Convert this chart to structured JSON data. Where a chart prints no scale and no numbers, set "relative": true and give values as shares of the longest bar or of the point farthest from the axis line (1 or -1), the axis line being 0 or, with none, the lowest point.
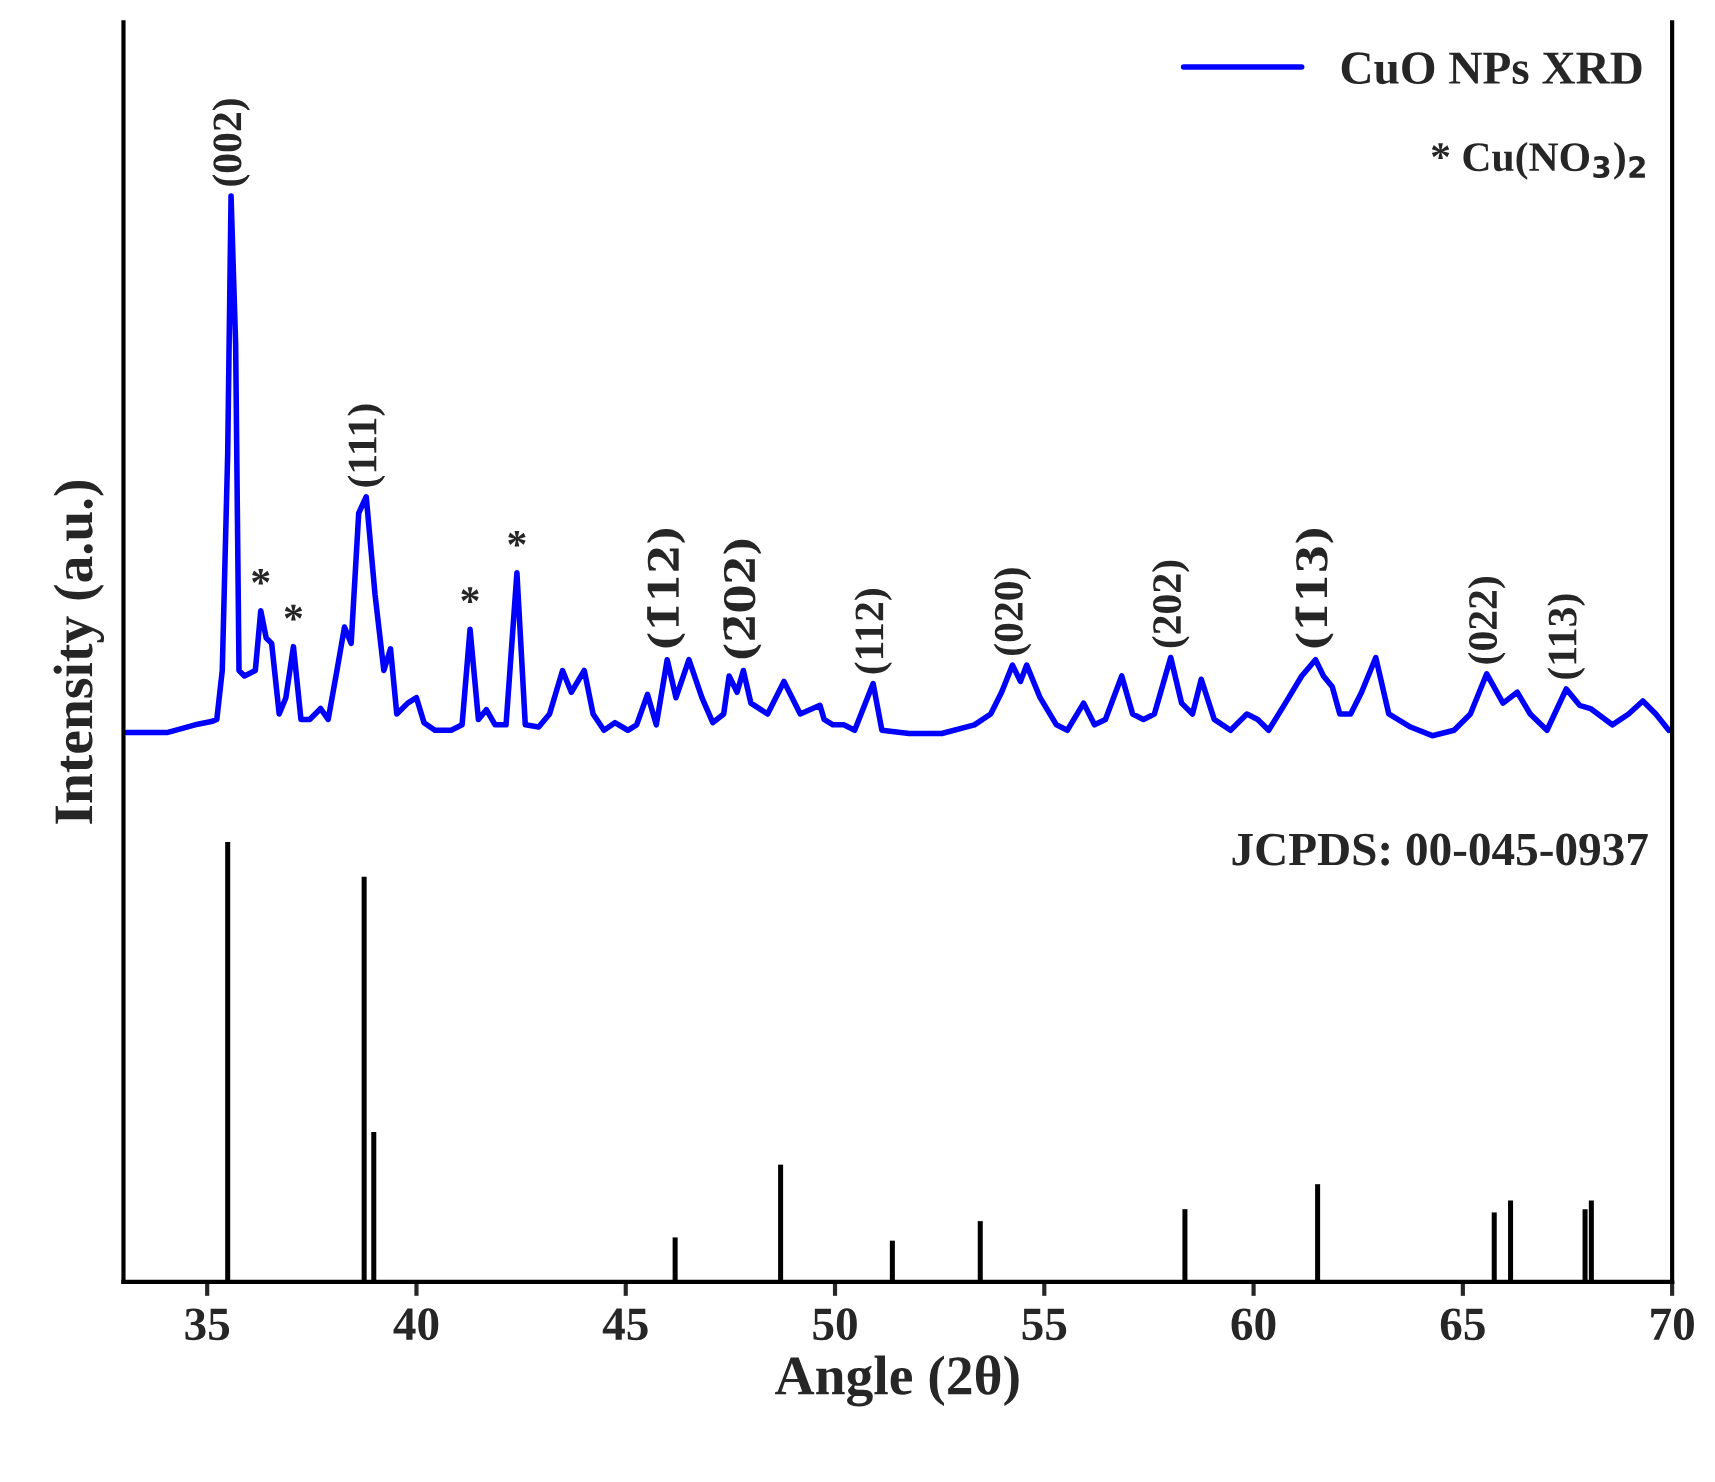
{
  "chart_data": {
    "type": "line",
    "relative": true,
    "xlabel": "Angle (2θ)",
    "ylabel": "Intensity (a.u.)",
    "xlim": [
      33,
      70
    ],
    "xticks": [
      35,
      40,
      45,
      50,
      55,
      60,
      65,
      70
    ],
    "legend": "top right",
    "grid": false,
    "series": [
      {
        "name": "CuO NPs XRD",
        "color": "#0000ff",
        "x": [
          33.07,
          34.06,
          34.71,
          35.1,
          35.23,
          35.36,
          35.49,
          35.57,
          35.68,
          35.76,
          35.89,
          36.15,
          36.28,
          36.41,
          36.54,
          36.72,
          36.88,
          37.06,
          37.24,
          37.45,
          37.71,
          37.89,
          38.1,
          38.28,
          38.44,
          38.62,
          38.8,
          39.01,
          39.22,
          39.38,
          39.53,
          39.79,
          40.0,
          40.18,
          40.44,
          40.83,
          41.09,
          41.28,
          41.48,
          41.67,
          41.88,
          42.14,
          42.4,
          42.6,
          42.92,
          43.18,
          43.49,
          43.7,
          44.01,
          44.22,
          44.48,
          44.74,
          45.05,
          45.26,
          45.52,
          45.73,
          45.99,
          46.2,
          46.51,
          46.82,
          47.08,
          47.34,
          47.47,
          47.66,
          47.81,
          47.99,
          48.39,
          48.78,
          49.17,
          49.64,
          49.74,
          49.95,
          50.21,
          50.47,
          50.91,
          51.12,
          51.77,
          52.55,
          53.33,
          53.72,
          53.98,
          54.24,
          54.43,
          54.58,
          54.9,
          55.29,
          55.55,
          55.94,
          56.2,
          56.46,
          56.85,
          57.11,
          57.37,
          57.63,
          58.02,
          58.28,
          58.54,
          58.75,
          59.06,
          59.45,
          59.84,
          60.1,
          60.36,
          60.76,
          61.15,
          61.48,
          61.67,
          61.88,
          62.06,
          62.32,
          62.58,
          62.92,
          63.23,
          63.75,
          64.27,
          64.79,
          65.18,
          65.57,
          65.96,
          66.3,
          66.61,
          67.01,
          67.47,
          67.79,
          68.05,
          68.57,
          68.96,
          69.3,
          69.61,
          69.92
        ],
        "values": [
          0.506,
          0.506,
          0.513,
          0.516,
          0.518,
          0.563,
          0.763,
          1.0,
          0.863,
          0.563,
          0.558,
          0.563,
          0.618,
          0.593,
          0.588,
          0.523,
          0.538,
          0.585,
          0.518,
          0.518,
          0.528,
          0.518,
          0.563,
          0.603,
          0.588,
          0.708,
          0.723,
          0.633,
          0.563,
          0.583,
          0.523,
          0.533,
          0.538,
          0.515,
          0.508,
          0.508,
          0.513,
          0.601,
          0.518,
          0.527,
          0.513,
          0.513,
          0.653,
          0.513,
          0.511,
          0.523,
          0.563,
          0.543,
          0.563,
          0.523,
          0.508,
          0.515,
          0.508,
          0.513,
          0.541,
          0.513,
          0.573,
          0.538,
          0.573,
          0.538,
          0.515,
          0.523,
          0.558,
          0.543,
          0.563,
          0.533,
          0.523,
          0.553,
          0.523,
          0.531,
          0.518,
          0.513,
          0.513,
          0.508,
          0.551,
          0.508,
          0.505,
          0.505,
          0.513,
          0.523,
          0.543,
          0.568,
          0.553,
          0.568,
          0.538,
          0.513,
          0.508,
          0.533,
          0.513,
          0.518,
          0.558,
          0.523,
          0.518,
          0.523,
          0.575,
          0.533,
          0.523,
          0.555,
          0.518,
          0.508,
          0.523,
          0.518,
          0.508,
          0.533,
          0.558,
          0.573,
          0.558,
          0.548,
          0.523,
          0.523,
          0.543,
          0.575,
          0.523,
          0.511,
          0.503,
          0.508,
          0.523,
          0.56,
          0.533,
          0.543,
          0.523,
          0.508,
          0.546,
          0.531,
          0.528,
          0.513,
          0.523,
          0.535,
          0.523,
          0.508
        ]
      },
      {
        "type": "bar",
        "color": "#000000",
        "x": [
          35.49,
          38.75,
          38.98,
          46.18,
          48.7,
          51.37,
          53.47,
          58.36,
          61.53,
          65.75,
          66.14,
          67.92,
          68.07
        ],
        "values": [
          0.405,
          0.373,
          0.138,
          0.041,
          0.108,
          0.038,
          0.056,
          0.067,
          0.09,
          0.064,
          0.075,
          0.067,
          0.075
        ]
      }
    ],
    "annotations": [
      {
        "text": "(002)",
        "x": 35.57,
        "y": 1.0
      },
      {
        "text": "*",
        "x": 36.28,
        "y": 0.618
      },
      {
        "text": "*",
        "x": 37.06,
        "y": 0.585
      },
      {
        "text": "(111)",
        "x": 38.8,
        "y": 0.723
      },
      {
        "text": "*",
        "x": 41.28,
        "y": 0.601
      },
      {
        "text": "*",
        "x": 42.4,
        "y": 0.653
      },
      {
        "text": "(1̄12)",
        "x": 45.99,
        "y": 0.573
      },
      {
        "text": "(2̄02)",
        "x": 47.81,
        "y": 0.563
      },
      {
        "text": "(112)",
        "x": 50.91,
        "y": 0.551
      },
      {
        "text": "(020)",
        "x": 54.24,
        "y": 0.568
      },
      {
        "text": "(202)",
        "x": 58.02,
        "y": 0.575
      },
      {
        "text": "(1̄13)",
        "x": 61.48,
        "y": 0.573
      },
      {
        "text": "(022)",
        "x": 65.57,
        "y": 0.56
      },
      {
        "text": "(113)",
        "x": 67.47,
        "y": 0.546
      },
      "* Cu(NO$_{3}$)$_{2}$",
      "JCPDS: 00-045-0937"
    ]
  }
}
